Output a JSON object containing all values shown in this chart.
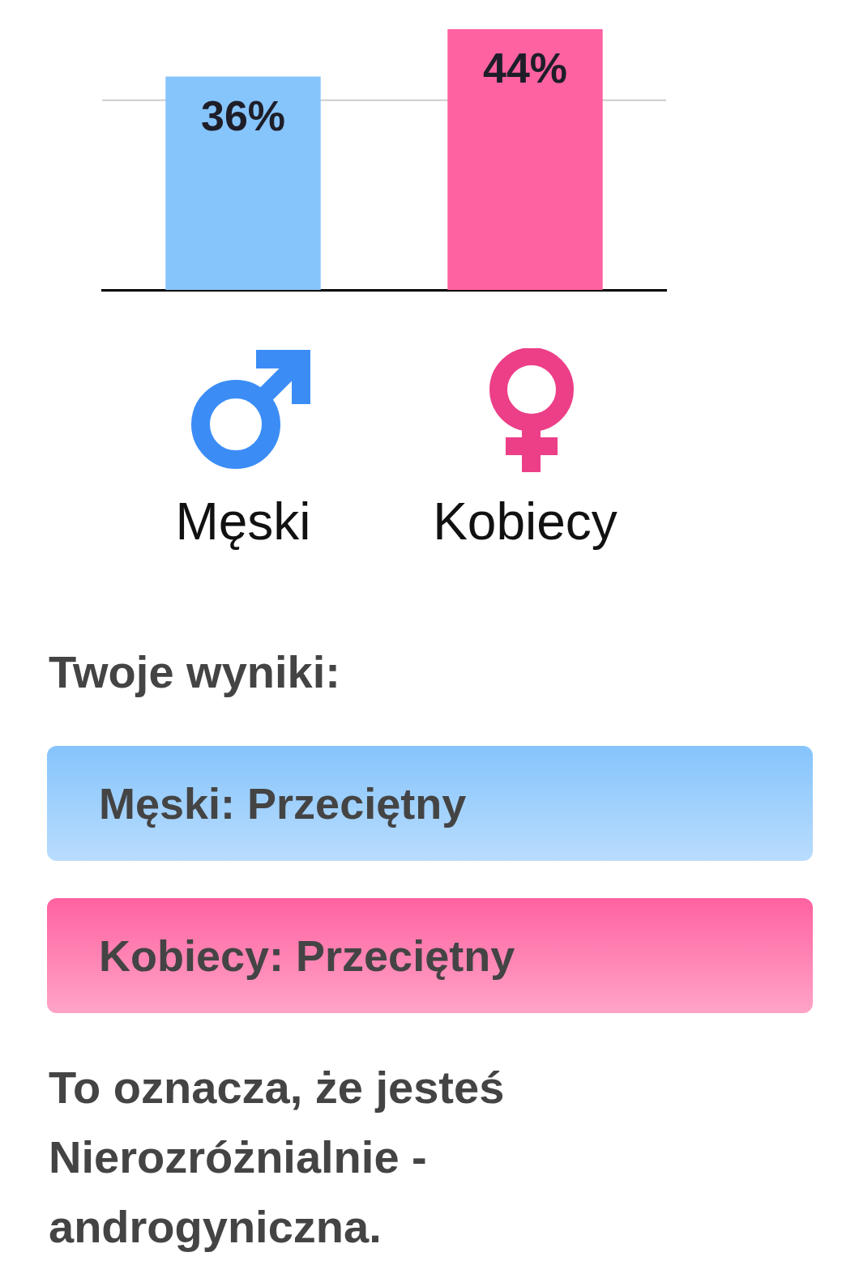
{
  "chart_data": {
    "type": "bar",
    "categories": [
      "Męski",
      "Kobiecy"
    ],
    "values": [
      36,
      44
    ],
    "value_labels": [
      "36%",
      "44%"
    ],
    "colors": [
      "#86c4fc",
      "#ff62a0"
    ],
    "ref_lines": [
      {
        "axis": "y",
        "value": 32,
        "color": "#cccccc"
      }
    ],
    "tick_labels": "x",
    "annotations": [
      "Twoje wyniki:",
      "Męski: Przeciętny",
      "Kobiecy: Przeciętny",
      "To oznacza, że jesteś Nierozróżnialnie - androgyniczna."
    ]
  }
}
